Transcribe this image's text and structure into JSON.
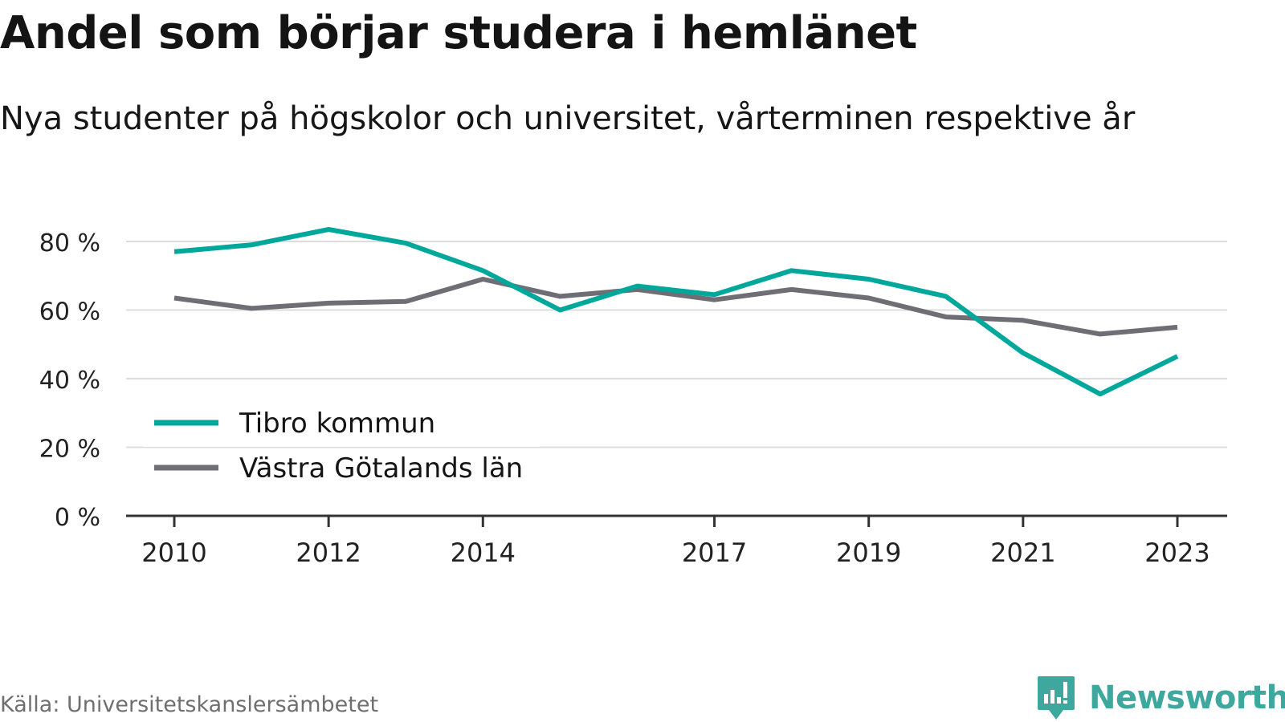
{
  "header": {
    "title": "Andel som börjar studera i hemlänet",
    "subtitle": "Nya studenter på högskolor och universitet, vårterminen respektive år"
  },
  "footer": {
    "source": "Källa: Universitetskanslersämbetet",
    "brand": "Newsworthy",
    "brand_icon": "newsworthy-logo-icon"
  },
  "colors": {
    "series_tibro": "#00a89c",
    "series_vg": "#6f6e74",
    "grid": "#dcdcdc",
    "axis": "#333333",
    "brand": "#3ea79e"
  },
  "chart_data": {
    "type": "line",
    "x": [
      2010,
      2011,
      2012,
      2013,
      2014,
      2015,
      2016,
      2017,
      2018,
      2019,
      2020,
      2021,
      2022,
      2023
    ],
    "x_tick_labels": [
      "2010",
      "2012",
      "2014",
      "2017",
      "2019",
      "2021",
      "2023"
    ],
    "y_ticks": [
      0,
      20,
      40,
      60,
      80
    ],
    "y_tick_labels": [
      "0 %",
      "20 %",
      "40 %",
      "60 %",
      "80 %"
    ],
    "ylim": [
      0,
      80
    ],
    "grid": true,
    "legend_position": "bottom-left",
    "series": [
      {
        "name": "Tibro kommun",
        "values": [
          77,
          79,
          83.5,
          79.5,
          71.5,
          60,
          67,
          64.5,
          71.5,
          69,
          64,
          47.5,
          35.5,
          46.5
        ]
      },
      {
        "name": "Västra Götalands län",
        "values": [
          63.5,
          60.5,
          62,
          62.5,
          69,
          64,
          66,
          63,
          66,
          63.5,
          58,
          57,
          53,
          55
        ]
      }
    ]
  }
}
